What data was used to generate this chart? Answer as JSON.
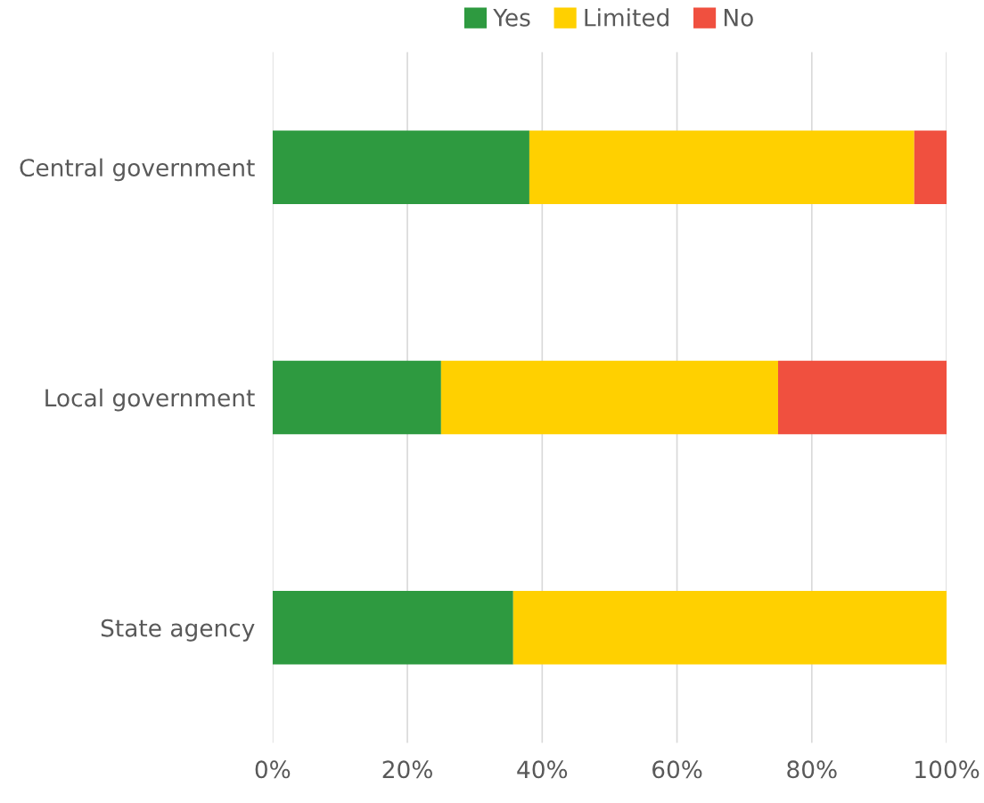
{
  "chart_data": {
    "type": "bar",
    "orientation": "horizontal",
    "stacked": true,
    "categories": [
      "Central government",
      "Local government",
      "State agency"
    ],
    "series": [
      {
        "name": "Yes",
        "color": "#2e9a40",
        "values": [
          38.1,
          25,
          35.7
        ]
      },
      {
        "name": "Limited",
        "color": "#ffd000",
        "values": [
          57.1,
          50,
          64.3
        ]
      },
      {
        "name": "No",
        "color": "#f0503f",
        "values": [
          4.8,
          25,
          0
        ]
      }
    ],
    "xlim": [
      0,
      100
    ],
    "xticks": [
      {
        "value": 0,
        "label": "0%"
      },
      {
        "value": 20,
        "label": "20%"
      },
      {
        "value": 40,
        "label": "40%"
      },
      {
        "value": 60,
        "label": "60%"
      },
      {
        "value": 80,
        "label": "80%"
      },
      {
        "value": 100,
        "label": "100%"
      }
    ],
    "grid": "x",
    "legend": "top"
  }
}
